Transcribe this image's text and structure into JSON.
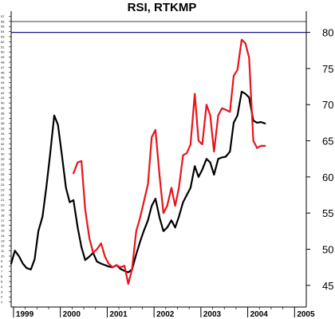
{
  "chart_data": {
    "type": "line",
    "title": "RSI, RTKMP",
    "x_tick_labels": [
      "1999",
      "2000",
      "2001",
      "2002",
      "2003",
      "2004",
      "2005"
    ],
    "x_tick_values": [
      1999,
      2000,
      2001,
      2002,
      2003,
      2004,
      2005
    ],
    "xlim": [
      1998.95,
      2005.25
    ],
    "right_axis": {
      "ticks": [
        45,
        50,
        55,
        60,
        65,
        70,
        75,
        80
      ],
      "ylim": [
        42,
        81.5
      ]
    },
    "left_axis": {
      "ticks": [
        1,
        2,
        3,
        4,
        5,
        6,
        7,
        8,
        9,
        10,
        11,
        12,
        13,
        14,
        15,
        16,
        17,
        18,
        19,
        20,
        21,
        22,
        23,
        24,
        25,
        26,
        27,
        28,
        29,
        30,
        31,
        32,
        33,
        34,
        35,
        36,
        37,
        38,
        39,
        40,
        41,
        42,
        43,
        44,
        45,
        46,
        47,
        48,
        49,
        50,
        51,
        52,
        53,
        54,
        55,
        56,
        57
      ],
      "ylim": [
        0,
        58
      ]
    },
    "reference_line": {
      "value": 80,
      "color": "#1a1a8c"
    },
    "grid": false,
    "series": [
      {
        "color": "#000000",
        "x": [
          1998.95,
          1999.03,
          1999.12,
          1999.2,
          1999.28,
          1999.37,
          1999.45,
          1999.53,
          1999.62,
          1999.7,
          1999.78,
          1999.87,
          1999.95,
          2000.03,
          2000.12,
          2000.2,
          2000.28,
          2000.37,
          2000.45,
          2000.53,
          2000.62,
          2000.7,
          2000.78,
          2000.87,
          2000.95,
          2001.03,
          2001.12,
          2001.2,
          2001.28,
          2001.37,
          2001.45,
          2001.53,
          2001.62,
          2001.7,
          2001.78,
          2001.87,
          2001.95,
          2002.03,
          2002.12,
          2002.2,
          2002.28,
          2002.37,
          2002.45,
          2002.53,
          2002.62,
          2002.7,
          2002.78,
          2002.87,
          2002.95,
          2003.03,
          2003.12,
          2003.2,
          2003.28,
          2003.37,
          2003.45,
          2003.53,
          2003.62,
          2003.7,
          2003.78,
          2003.87,
          2003.95,
          2004.03,
          2004.12,
          2004.2,
          2004.28,
          2004.37
        ],
        "y": [
          48.0,
          49.8,
          49.0,
          48.0,
          47.4,
          47.2,
          48.6,
          52.5,
          54.5,
          58.5,
          63.0,
          68.5,
          67.2,
          63.2,
          58.5,
          56.5,
          56.8,
          53.0,
          50.3,
          48.5,
          49.0,
          49.5,
          48.3,
          48.0,
          47.8,
          47.6,
          47.5,
          47.8,
          47.3,
          47.0,
          46.8,
          47.2,
          49.3,
          51.0,
          52.5,
          54.0,
          56.0,
          57.0,
          54.3,
          52.5,
          53.0,
          54.0,
          53.0,
          54.5,
          56.5,
          57.5,
          58.5,
          61.5,
          60.0,
          61.0,
          62.5,
          62.0,
          60.3,
          62.5,
          62.7,
          62.8,
          63.5,
          67.5,
          68.5,
          71.8,
          71.5,
          71.0,
          67.8,
          67.5,
          67.6,
          67.4
        ]
      },
      {
        "color": "#e8141a",
        "x": [
          2000.28,
          2000.37,
          2000.45,
          2000.53,
          2000.62,
          2000.7,
          2000.78,
          2000.87,
          2000.95,
          2001.03,
          2001.12,
          2001.2,
          2001.28,
          2001.37,
          2001.45,
          2001.53,
          2001.62,
          2001.7,
          2001.78,
          2001.87,
          2001.95,
          2002.03,
          2002.12,
          2002.2,
          2002.28,
          2002.37,
          2002.45,
          2002.53,
          2002.62,
          2002.7,
          2002.78,
          2002.87,
          2002.95,
          2003.03,
          2003.12,
          2003.2,
          2003.28,
          2003.37,
          2003.45,
          2003.53,
          2003.62,
          2003.7,
          2003.78,
          2003.87,
          2003.95,
          2004.03,
          2004.12,
          2004.2,
          2004.28,
          2004.37
        ],
        "y": [
          60.5,
          62.0,
          62.2,
          55.5,
          51.5,
          49.5,
          50.0,
          50.8,
          49.0,
          48.0,
          47.5,
          47.8,
          47.5,
          47.7,
          45.2,
          47.2,
          52.5,
          54.3,
          56.5,
          59.0,
          65.5,
          66.5,
          60.0,
          55.0,
          56.0,
          58.5,
          56.0,
          58.5,
          63.0,
          63.3,
          64.5,
          71.5,
          65.0,
          64.5,
          70.0,
          68.5,
          63.5,
          68.5,
          69.5,
          69.3,
          69.0,
          74.0,
          74.8,
          79.0,
          78.5,
          76.5,
          65.0,
          64.0,
          64.3,
          64.3
        ]
      }
    ]
  }
}
